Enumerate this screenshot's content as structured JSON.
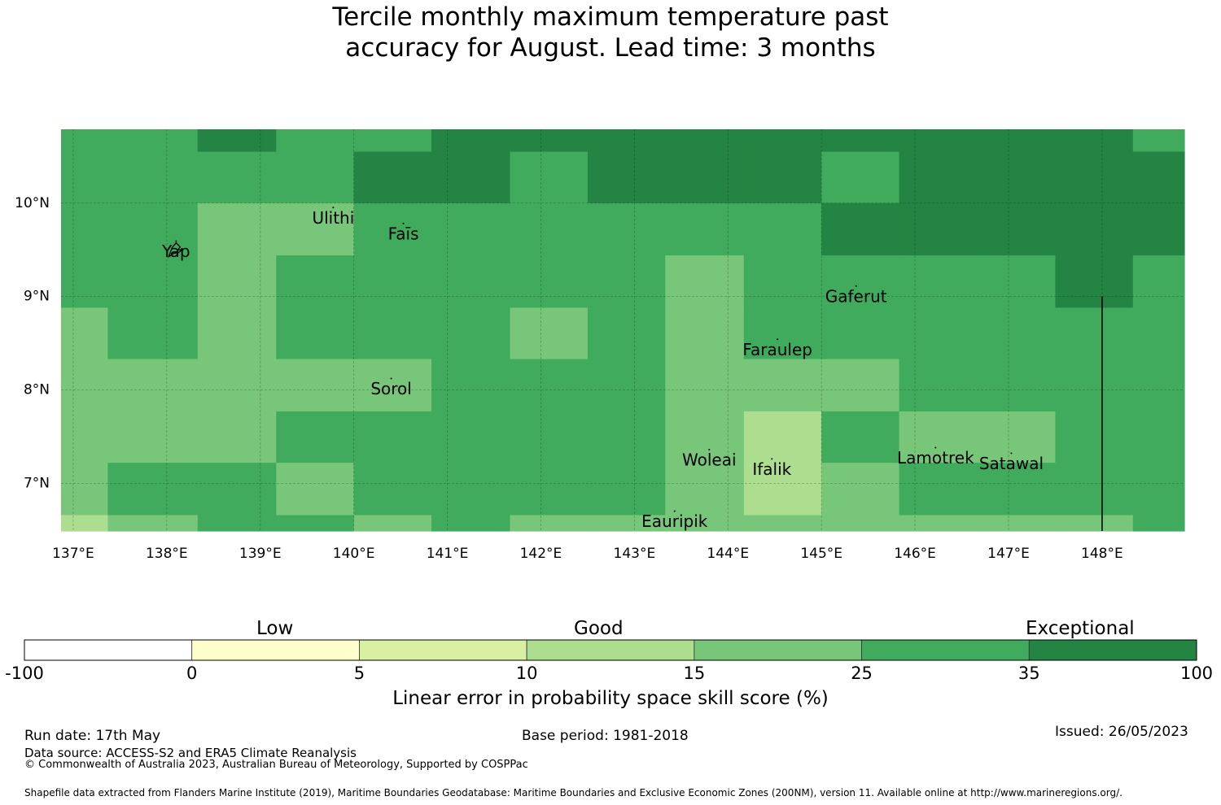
{
  "title": {
    "line1": "Tercile monthly maximum temperature past",
    "line2": "accuracy for August. Lead time: 3 months"
  },
  "map": {
    "x_range_deg_e": [
      136.87,
      148.88
    ],
    "y_range_deg_n": [
      6.49,
      10.79
    ],
    "lon_ticks": [
      137,
      138,
      139,
      140,
      141,
      142,
      143,
      144,
      145,
      146,
      147,
      148
    ],
    "lon_tick_labels": [
      "137°E",
      "138°E",
      "139°E",
      "140°E",
      "141°E",
      "142°E",
      "143°E",
      "144°E",
      "145°E",
      "146°E",
      "147°E",
      "148°E"
    ],
    "lat_ticks": [
      7,
      8,
      9,
      10
    ],
    "lat_tick_labels": [
      "7°N",
      "8°N",
      "9°N",
      "10°N"
    ],
    "grid_lines": true,
    "grid_lon_edges": [
      136.87,
      137.37,
      138.33,
      139.17,
      140.0,
      140.83,
      141.67,
      142.5,
      143.33,
      144.17,
      145.0,
      145.83,
      146.67,
      147.5,
      148.33,
      148.88
    ],
    "grid_lat_edges": [
      10.79,
      10.55,
      10.0,
      9.44,
      8.88,
      8.33,
      7.77,
      7.22,
      6.66,
      6.49
    ],
    "category_colors": [
      "#ffffff",
      "#ffffcc",
      "#d9f0a3",
      "#addd8e",
      "#78c679",
      "#41ab5d",
      "#238443"
    ],
    "cells": [
      [
        5,
        5,
        6,
        5,
        5,
        6,
        6,
        6,
        6,
        6,
        6,
        6,
        6,
        6,
        5
      ],
      [
        5,
        5,
        5,
        5,
        6,
        6,
        5,
        6,
        6,
        6,
        5,
        6,
        6,
        6,
        6
      ],
      [
        5,
        5,
        4,
        4,
        5,
        5,
        5,
        5,
        5,
        5,
        6,
        6,
        6,
        6,
        6
      ],
      [
        5,
        5,
        4,
        5,
        5,
        5,
        5,
        5,
        4,
        5,
        5,
        5,
        5,
        6,
        5
      ],
      [
        4,
        5,
        4,
        5,
        5,
        5,
        4,
        5,
        4,
        5,
        5,
        5,
        5,
        5,
        5
      ],
      [
        4,
        4,
        4,
        4,
        4,
        5,
        5,
        5,
        4,
        4,
        4,
        5,
        5,
        5,
        5
      ],
      [
        4,
        4,
        4,
        5,
        5,
        5,
        5,
        5,
        4,
        3,
        5,
        4,
        4,
        5,
        5
      ],
      [
        4,
        5,
        5,
        4,
        5,
        5,
        5,
        5,
        4,
        3,
        4,
        5,
        5,
        5,
        5
      ],
      [
        3,
        4,
        5,
        5,
        4,
        5,
        4,
        4,
        4,
        4,
        4,
        4,
        4,
        4,
        5
      ]
    ],
    "boundary_line": {
      "lon": 148.0,
      "lat_from": 9.0,
      "lat_to": 6.49
    },
    "places": [
      {
        "name": "Ulithi",
        "lon": 139.78,
        "lat": 9.83
      },
      {
        "name": "Faīs",
        "lon": 140.53,
        "lat": 9.66
      },
      {
        "name": "Yap",
        "lon": 138.1,
        "lat": 9.47
      },
      {
        "name": "Gaferut",
        "lon": 145.37,
        "lat": 8.99
      },
      {
        "name": "Faraulep",
        "lon": 144.53,
        "lat": 8.42
      },
      {
        "name": "Sorol",
        "lon": 140.4,
        "lat": 8.0
      },
      {
        "name": "Woleai",
        "lon": 143.8,
        "lat": 7.24
      },
      {
        "name": "Ifalik",
        "lon": 144.47,
        "lat": 7.14
      },
      {
        "name": "Lamotrek",
        "lon": 146.22,
        "lat": 7.26
      },
      {
        "name": "Satawal",
        "lon": 147.03,
        "lat": 7.2
      },
      {
        "name": "Eauripik",
        "lon": 143.43,
        "lat": 6.58
      }
    ]
  },
  "colorbar": {
    "category_labels": {
      "low": "Low",
      "good": "Good",
      "exceptional": "Exceptional"
    },
    "colors": [
      "#ffffff",
      "#ffffcc",
      "#d9f0a3",
      "#addd8e",
      "#78c679",
      "#41ab5d",
      "#238443"
    ],
    "boundaries": [
      -100,
      0,
      5,
      10,
      15,
      25,
      35,
      100
    ],
    "tick_labels": [
      "-100",
      "0",
      "5",
      "10",
      "15",
      "25",
      "35",
      "100"
    ],
    "axis_label": "Linear error in probability space skill score (%)"
  },
  "footer": {
    "run_date": "Run date: 17th May",
    "base_period": "Base period: 1981-2018",
    "issued": "Issued: 26/05/2023",
    "data_source": "Data source: ACCESS-S2 and ERA5 Climate Reanalysis",
    "copyright": "© Commonwealth of Australia 2023, Australian Bureau of Meteorology, Supported by COSPPac",
    "shapefile": "Shapefile data extracted from Flanders Marine Institute (2019), Maritime Boundaries Geodatabase: Maritime Boundaries and Exclusive Economic Zones (200NM), version 11. Available online at http://www.marineregions.org/."
  }
}
